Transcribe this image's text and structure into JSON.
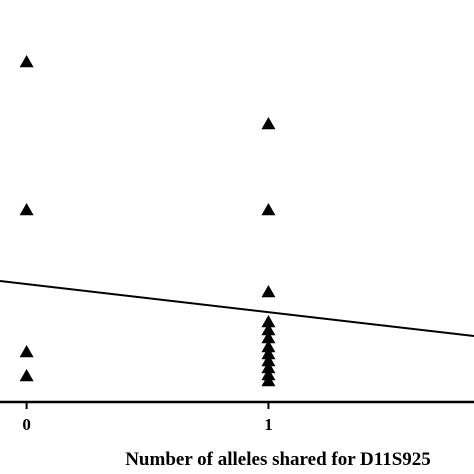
{
  "chart_data": {
    "type": "scatter",
    "title": "",
    "xlabel": "Number of alleles shared for D11S925",
    "ylabel": "",
    "x_ticks": [
      0,
      1
    ],
    "x_tick_labels": [
      "0",
      "1"
    ],
    "xlim": [
      -0.11,
      1.85
    ],
    "ylim": [
      0,
      340
    ],
    "grid": false,
    "marker": "triangle",
    "color": "#000000",
    "series": [
      {
        "points": [
          {
            "x": 0,
            "y": 340
          },
          {
            "x": 0,
            "y": 192
          },
          {
            "x": 0,
            "y": 50
          },
          {
            "x": 0,
            "y": 26
          },
          {
            "x": 1,
            "y": 278
          },
          {
            "x": 1,
            "y": 192
          },
          {
            "x": 1,
            "y": 110
          },
          {
            "x": 1,
            "y": 80
          },
          {
            "x": 1,
            "y": 72
          },
          {
            "x": 1,
            "y": 64
          },
          {
            "x": 1,
            "y": 55
          },
          {
            "x": 1,
            "y": 48
          },
          {
            "x": 1,
            "y": 41
          },
          {
            "x": 1,
            "y": 34
          },
          {
            "x": 1,
            "y": 27
          },
          {
            "x": 1,
            "y": 21
          }
        ]
      }
    ],
    "regression_line": {
      "x": [
        -0.11,
        1.85
      ],
      "y": [
        121,
        66
      ]
    }
  }
}
